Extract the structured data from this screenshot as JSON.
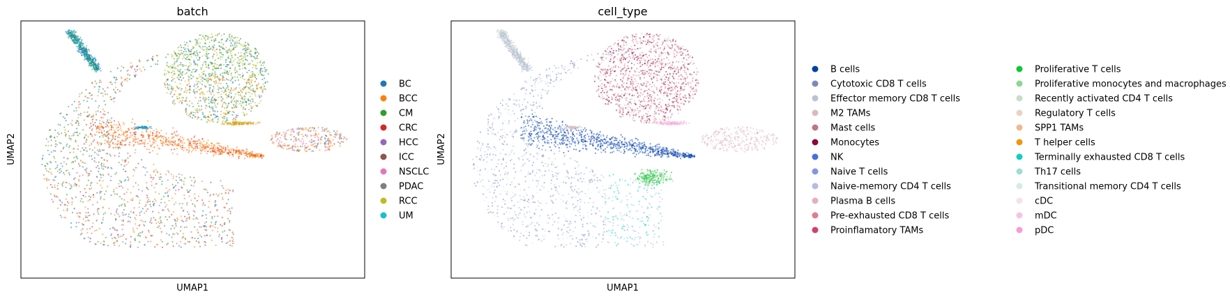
{
  "chart_data": [
    {
      "type": "scatter",
      "title": "batch",
      "xlabel": "UMAP1",
      "ylabel": "UMAP2",
      "grid": false,
      "ticks": "none",
      "legend_placement": "right",
      "series": [
        {
          "name": "BC",
          "color": "#1f77b4"
        },
        {
          "name": "BCC",
          "color": "#ff7f0e"
        },
        {
          "name": "CM",
          "color": "#2ca02c"
        },
        {
          "name": "CRC",
          "color": "#d62728"
        },
        {
          "name": "HCC",
          "color": "#9467bd"
        },
        {
          "name": "ICC",
          "color": "#8c564b"
        },
        {
          "name": "NSCLC",
          "color": "#e377c2"
        },
        {
          "name": "PDAC",
          "color": "#7f7f7f"
        },
        {
          "name": "RCC",
          "color": "#bcbd22"
        },
        {
          "name": "UM",
          "color": "#17becf"
        }
      ]
    },
    {
      "type": "scatter",
      "title": "cell_type",
      "xlabel": "UMAP1",
      "ylabel": "UMAP2",
      "grid": false,
      "ticks": "none",
      "legend_placement": "right",
      "series": [
        {
          "name": "B cells",
          "color": "#023fa5"
        },
        {
          "name": "Cytotoxic CD8 T cells",
          "color": "#7d87b9"
        },
        {
          "name": "Effector memory CD8 T cells",
          "color": "#bec1d4"
        },
        {
          "name": "M2 TAMs",
          "color": "#d6bcc0"
        },
        {
          "name": "Mast cells",
          "color": "#bb7784"
        },
        {
          "name": "Monocytes",
          "color": "#8e063b"
        },
        {
          "name": "NK",
          "color": "#4a6fe3"
        },
        {
          "name": "Naive T cells",
          "color": "#8595e1"
        },
        {
          "name": "Naive-memory CD4 T cells",
          "color": "#b5bbe3"
        },
        {
          "name": "Plasma B cells",
          "color": "#e6afb9"
        },
        {
          "name": "Pre-exhausted CD8 T cells",
          "color": "#e07b91"
        },
        {
          "name": "Proinflamatory TAMs",
          "color": "#d33f6a"
        },
        {
          "name": "Proliferative T cells",
          "color": "#11c638"
        },
        {
          "name": "Proliferative monocytes and macrophages",
          "color": "#8dd593"
        },
        {
          "name": "Recently activated CD4 T cells",
          "color": "#c6dec7"
        },
        {
          "name": "Regulatory T cells",
          "color": "#ead3c6"
        },
        {
          "name": "SPP1 TAMs",
          "color": "#f0b98d"
        },
        {
          "name": "T helper cells",
          "color": "#ef9708"
        },
        {
          "name": "Terminally exhausted CD8 T cells",
          "color": "#0fcfc0"
        },
        {
          "name": "Th17 cells",
          "color": "#9cded6"
        },
        {
          "name": "Transitional memory CD4 T cells",
          "color": "#d5eae7"
        },
        {
          "name": "cDC",
          "color": "#f3e1eb"
        },
        {
          "name": "mDC",
          "color": "#f6c4e1"
        },
        {
          "name": "pDC",
          "color": "#f79cd4"
        }
      ]
    }
  ]
}
